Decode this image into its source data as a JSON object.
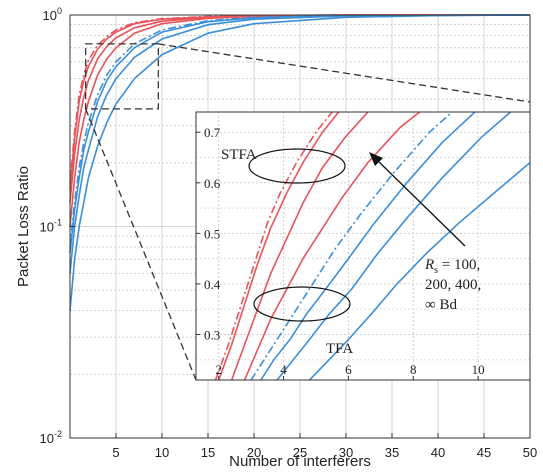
{
  "chart_data": [
    {
      "type": "line",
      "xlabel": "Number of interferers",
      "ylabel": "Packet Loss Ratio",
      "xlim": [
        0,
        50
      ],
      "ylim": [
        0.01,
        1
      ],
      "yscale": "log",
      "grid": true,
      "x_ticks": [
        5,
        10,
        15,
        20,
        25,
        30,
        35,
        40,
        45,
        50
      ],
      "y_ticks": [
        {
          "value": 0.01,
          "base": "10",
          "exp": "-2"
        },
        {
          "value": 0.1,
          "base": "10",
          "exp": "-1"
        },
        {
          "value": 1,
          "base": "10",
          "exp": "0"
        }
      ],
      "series": [
        {
          "color": "#e8535a",
          "style": "dashdot",
          "group": "STFA",
          "points": [
            [
              0,
              0.16
            ],
            [
              0.5,
              0.28
            ],
            [
              1,
              0.42
            ],
            [
              1.5,
              0.52
            ],
            [
              2,
              0.61
            ],
            [
              3,
              0.72
            ],
            [
              4,
              0.79
            ],
            [
              5,
              0.85
            ],
            [
              7,
              0.92
            ],
            [
              10,
              0.96
            ],
            [
              15,
              0.985
            ],
            [
              20,
              0.995
            ],
            [
              30,
              1.0
            ],
            [
              50,
              1.0
            ]
          ]
        },
        {
          "color": "#e8535a",
          "style": "solid",
          "group": "STFA",
          "points": [
            [
              0,
              0.15
            ],
            [
              0.5,
              0.26
            ],
            [
              1,
              0.39
            ],
            [
              1.5,
              0.49
            ],
            [
              2,
              0.57
            ],
            [
              3,
              0.69
            ],
            [
              4,
              0.77
            ],
            [
              5,
              0.83
            ],
            [
              7,
              0.91
            ],
            [
              10,
              0.955
            ],
            [
              15,
              0.98
            ],
            [
              20,
              0.993
            ],
            [
              30,
              1.0
            ],
            [
              50,
              1.0
            ]
          ]
        },
        {
          "color": "#e8535a",
          "style": "solid",
          "group": "STFA",
          "points": [
            [
              0,
              0.13
            ],
            [
              0.5,
              0.22
            ],
            [
              1,
              0.32
            ],
            [
              1.5,
              0.41
            ],
            [
              2,
              0.49
            ],
            [
              3,
              0.62
            ],
            [
              4,
              0.71
            ],
            [
              5,
              0.78
            ],
            [
              7,
              0.87
            ],
            [
              10,
              0.935
            ],
            [
              15,
              0.975
            ],
            [
              20,
              0.99
            ],
            [
              30,
              1.0
            ],
            [
              50,
              1.0
            ]
          ]
        },
        {
          "color": "#e8535a",
          "style": "solid",
          "group": "STFA",
          "points": [
            [
              0,
              0.1
            ],
            [
              0.5,
              0.17
            ],
            [
              1,
              0.25
            ],
            [
              1.5,
              0.32
            ],
            [
              2,
              0.39
            ],
            [
              3,
              0.52
            ],
            [
              4,
              0.62
            ],
            [
              5,
              0.7
            ],
            [
              7,
              0.82
            ],
            [
              10,
              0.91
            ],
            [
              15,
              0.965
            ],
            [
              20,
              0.985
            ],
            [
              30,
              0.998
            ],
            [
              50,
              1.0
            ]
          ]
        },
        {
          "color": "#3b8fd6",
          "style": "dashdot",
          "group": "TFA",
          "points": [
            [
              0,
              0.08
            ],
            [
              0.5,
              0.13
            ],
            [
              1,
              0.19
            ],
            [
              1.5,
              0.25
            ],
            [
              2,
              0.31
            ],
            [
              3,
              0.42
            ],
            [
              4,
              0.52
            ],
            [
              5,
              0.6
            ],
            [
              7,
              0.73
            ],
            [
              10,
              0.85
            ],
            [
              15,
              0.94
            ],
            [
              20,
              0.975
            ],
            [
              30,
              0.995
            ],
            [
              50,
              1.0
            ]
          ]
        },
        {
          "color": "#3b8fd6",
          "style": "solid",
          "group": "TFA",
          "points": [
            [
              0,
              0.075
            ],
            [
              0.5,
              0.12
            ],
            [
              1,
              0.17
            ],
            [
              1.5,
              0.23
            ],
            [
              2,
              0.28
            ],
            [
              3,
              0.39
            ],
            [
              4,
              0.49
            ],
            [
              5,
              0.57
            ],
            [
              7,
              0.7
            ],
            [
              10,
              0.83
            ],
            [
              15,
              0.93
            ],
            [
              20,
              0.97
            ],
            [
              30,
              0.993
            ],
            [
              50,
              1.0
            ]
          ]
        },
        {
          "color": "#3b8fd6",
          "style": "solid",
          "group": "TFA",
          "points": [
            [
              0,
              0.06
            ],
            [
              0.5,
              0.1
            ],
            [
              1,
              0.14
            ],
            [
              1.5,
              0.19
            ],
            [
              2,
              0.23
            ],
            [
              3,
              0.33
            ],
            [
              4,
              0.42
            ],
            [
              5,
              0.5
            ],
            [
              7,
              0.63
            ],
            [
              10,
              0.77
            ],
            [
              15,
              0.9
            ],
            [
              20,
              0.955
            ],
            [
              30,
              0.99
            ],
            [
              50,
              1.0
            ]
          ]
        },
        {
          "color": "#3b8fd6",
          "style": "solid",
          "group": "TFA",
          "points": [
            [
              0,
              0.04
            ],
            [
              0.5,
              0.07
            ],
            [
              1,
              0.1
            ],
            [
              1.5,
              0.13
            ],
            [
              2,
              0.17
            ],
            [
              3,
              0.24
            ],
            [
              4,
              0.31
            ],
            [
              5,
              0.38
            ],
            [
              7,
              0.5
            ],
            [
              10,
              0.65
            ],
            [
              15,
              0.82
            ],
            [
              20,
              0.91
            ],
            [
              30,
              0.975
            ],
            [
              40,
              0.993
            ],
            [
              50,
              1.0
            ]
          ]
        }
      ],
      "zoom_region": {
        "xlim": [
          1.7,
          9.6
        ],
        "ylim": [
          0.36,
          0.73
        ]
      }
    },
    {
      "type": "line",
      "role": "inset",
      "xlim": [
        1.3,
        11.6
      ],
      "ylim": [
        0.21,
        0.74
      ],
      "x_ticks": [
        2,
        4,
        6,
        8,
        10
      ],
      "y_ticks": [
        0.3,
        0.4,
        0.5,
        0.6,
        0.7
      ],
      "y_tick_labels": [
        "0.3",
        "0.4",
        "0.5",
        "0.6",
        "0.7"
      ],
      "grid": true,
      "series": [
        {
          "color": "#e8535a",
          "style": "dashdot",
          "group": "STFA",
          "points": [
            [
              1.9,
              0.21
            ],
            [
              2.3,
              0.28
            ],
            [
              2.7,
              0.36
            ],
            [
              3.1,
              0.44
            ],
            [
              3.5,
              0.52
            ],
            [
              3.9,
              0.58
            ],
            [
              4.4,
              0.64
            ],
            [
              5.0,
              0.7
            ],
            [
              5.5,
              0.74
            ]
          ]
        },
        {
          "color": "#e8535a",
          "style": "solid",
          "group": "STFA",
          "points": [
            [
              2.0,
              0.21
            ],
            [
              2.4,
              0.28
            ],
            [
              2.8,
              0.36
            ],
            [
              3.2,
              0.44
            ],
            [
              3.6,
              0.51
            ],
            [
              4.1,
              0.58
            ],
            [
              4.6,
              0.64
            ],
            [
              5.2,
              0.7
            ],
            [
              5.7,
              0.74
            ]
          ]
        },
        {
          "color": "#e8535a",
          "style": "solid",
          "group": "STFA",
          "points": [
            [
              2.4,
              0.21
            ],
            [
              2.8,
              0.28
            ],
            [
              3.2,
              0.35
            ],
            [
              3.6,
              0.42
            ],
            [
              4.1,
              0.49
            ],
            [
              4.6,
              0.56
            ],
            [
              5.2,
              0.63
            ],
            [
              5.9,
              0.69
            ],
            [
              6.6,
              0.74
            ]
          ]
        },
        {
          "color": "#e8535a",
          "style": "solid",
          "group": "STFA",
          "points": [
            [
              2.8,
              0.21
            ],
            [
              3.2,
              0.27
            ],
            [
              3.6,
              0.33
            ],
            [
              4.1,
              0.39
            ],
            [
              4.6,
              0.45
            ],
            [
              5.1,
              0.5
            ],
            [
              5.8,
              0.57
            ],
            [
              6.6,
              0.64
            ],
            [
              7.6,
              0.71
            ],
            [
              8.2,
              0.74
            ]
          ]
        },
        {
          "color": "#3b8fd6",
          "style": "dashdot",
          "group": "TFA",
          "points": [
            [
              3.0,
              0.21
            ],
            [
              3.4,
              0.25
            ],
            [
              3.8,
              0.29
            ],
            [
              4.3,
              0.34
            ],
            [
              4.9,
              0.4
            ],
            [
              5.6,
              0.47
            ],
            [
              6.4,
              0.54
            ],
            [
              7.4,
              0.62
            ],
            [
              8.5,
              0.7
            ],
            [
              9.2,
              0.74
            ]
          ]
        },
        {
          "color": "#3b8fd6",
          "style": "solid",
          "group": "TFA",
          "points": [
            [
              3.3,
              0.21
            ],
            [
              3.7,
              0.25
            ],
            [
              4.2,
              0.29
            ],
            [
              4.7,
              0.34
            ],
            [
              5.3,
              0.39
            ],
            [
              6.0,
              0.45
            ],
            [
              6.8,
              0.52
            ],
            [
              7.8,
              0.6
            ],
            [
              8.9,
              0.68
            ],
            [
              9.9,
              0.74
            ]
          ]
        },
        {
          "color": "#3b8fd6",
          "style": "solid",
          "group": "TFA",
          "points": [
            [
              3.8,
              0.21
            ],
            [
              4.3,
              0.25
            ],
            [
              4.8,
              0.29
            ],
            [
              5.4,
              0.34
            ],
            [
              6.1,
              0.39
            ],
            [
              6.9,
              0.46
            ],
            [
              7.8,
              0.53
            ],
            [
              8.9,
              0.61
            ],
            [
              10.1,
              0.69
            ],
            [
              11.0,
              0.74
            ]
          ]
        },
        {
          "color": "#3b8fd6",
          "style": "solid",
          "group": "TFA",
          "points": [
            [
              4.8,
              0.21
            ],
            [
              5.4,
              0.25
            ],
            [
              6.0,
              0.29
            ],
            [
              6.7,
              0.34
            ],
            [
              7.5,
              0.4
            ],
            [
              8.4,
              0.46
            ],
            [
              9.4,
              0.52
            ],
            [
              10.5,
              0.58
            ],
            [
              11.6,
              0.64
            ]
          ]
        }
      ],
      "annotations": {
        "stfa_label": "STFA",
        "tfa_label": "TFA",
        "param_symbol": "R",
        "param_sub": "s",
        "param_line1": " = 100,",
        "param_line2": "200, 400,",
        "param_line3": "∞ Bd"
      }
    }
  ]
}
